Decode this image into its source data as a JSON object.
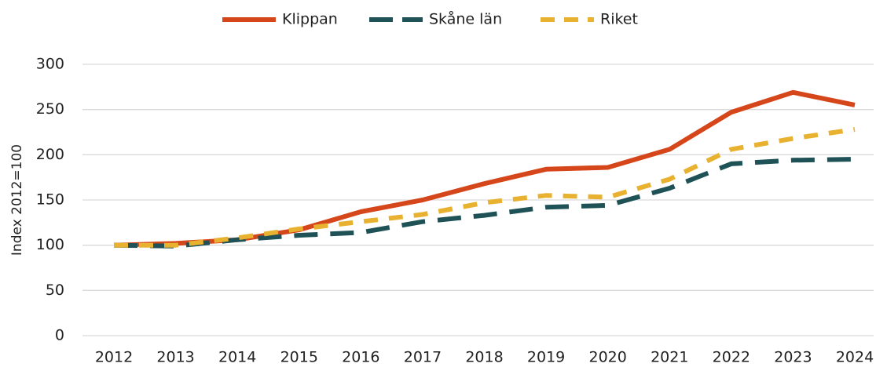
{
  "chart_data": {
    "type": "line",
    "y_label": "Index 2012=100",
    "categories": [
      "2012",
      "2013",
      "2014",
      "2015",
      "2016",
      "2017",
      "2018",
      "2019",
      "2020",
      "2021",
      "2022",
      "2023",
      "2024"
    ],
    "series": [
      {
        "name": "Klippan",
        "color": "#d5461a",
        "line_style": "solid",
        "values": [
          100,
          102,
          106,
          117,
          137,
          150,
          168,
          184,
          186,
          206,
          247,
          269,
          255
        ]
      },
      {
        "name": "Skåne län",
        "color": "#1f5257",
        "line_style": "dashed",
        "values": [
          100,
          99,
          106,
          111,
          114,
          126,
          133,
          142,
          144,
          163,
          190,
          194,
          195
        ]
      },
      {
        "name": "Riket",
        "color": "#e8b230",
        "line_style": "dashed",
        "values": [
          100,
          100,
          108,
          118,
          126,
          134,
          147,
          155,
          153,
          173,
          206,
          218,
          228
        ]
      }
    ],
    "ylim": [
      0,
      300
    ],
    "yticks": [
      0,
      50,
      100,
      150,
      200,
      250,
      300
    ],
    "grid": true,
    "legend": "top"
  }
}
